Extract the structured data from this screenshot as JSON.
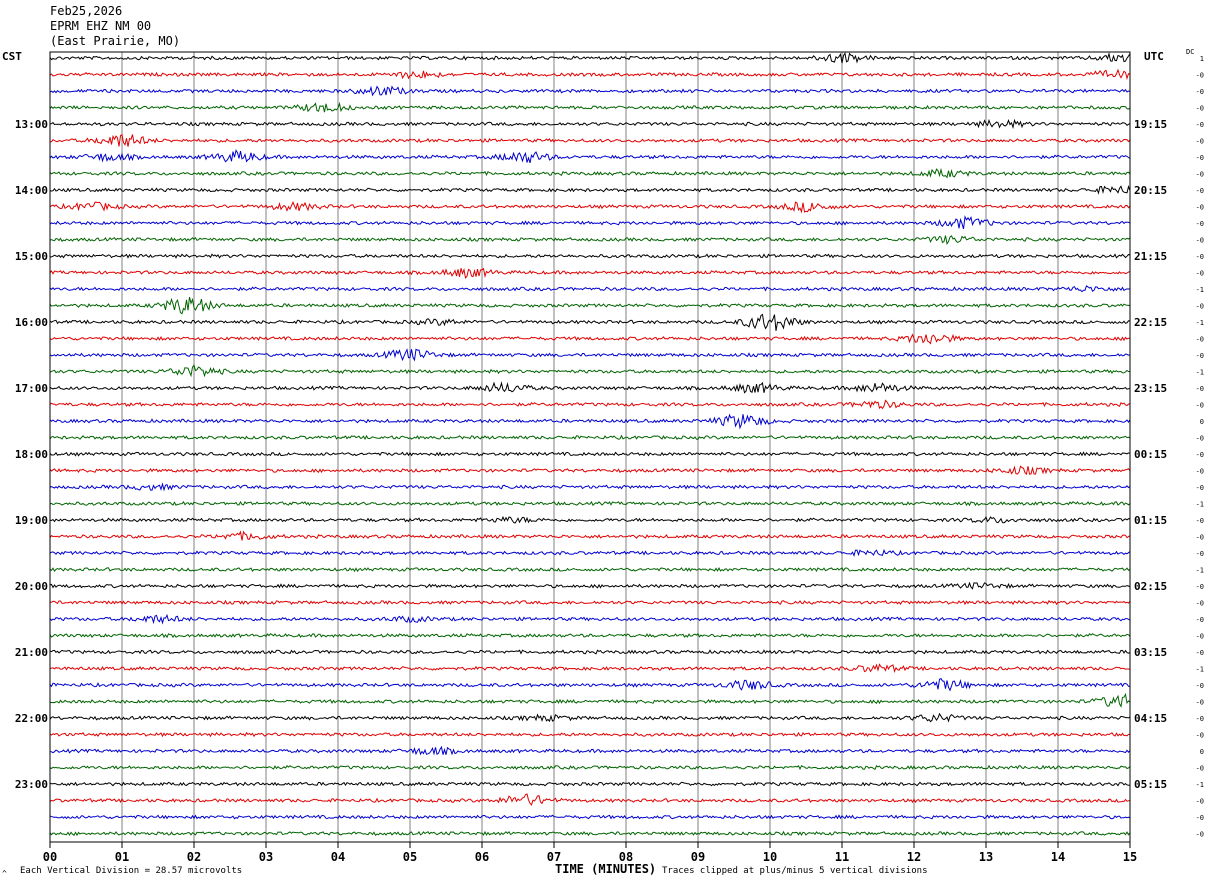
{
  "header": {
    "date": "Feb25,2026",
    "station": "EPRM EHZ NM 00",
    "location": "(East Prairie, MO)"
  },
  "left_timezone": "CST",
  "right_timezone": "UTC",
  "dc_label": "DC",
  "footer": {
    "scale_note": "Each Vertical Division =   28.57 microvolts",
    "clip_note": "Traces clipped at plus/minus 5 vertical divisions",
    "corner_mark": "^"
  },
  "colors": {
    "cycle": [
      "#000000",
      "#e00000",
      "#0000d0",
      "#006400"
    ],
    "grid": "#808080"
  },
  "chart_data": {
    "type": "line",
    "title": "",
    "xlabel": "TIME (MINUTES)",
    "xlim": [
      0,
      15
    ],
    "x_ticks": [
      "00",
      "01",
      "02",
      "03",
      "04",
      "05",
      "06",
      "07",
      "08",
      "09",
      "10",
      "11",
      "12",
      "13",
      "14",
      "15"
    ],
    "trace_count": 48,
    "left_hour_labels": [
      "13:00",
      "14:00",
      "15:00",
      "16:00",
      "17:00",
      "18:00",
      "19:00",
      "20:00",
      "21:00",
      "22:00",
      "23:00"
    ],
    "right_hour_labels": [
      "19:15",
      "20:15",
      "21:15",
      "22:15",
      "23:15",
      "00:15",
      "01:15",
      "02:15",
      "03:15",
      "04:15",
      "05:15"
    ],
    "dc_values": [
      "1",
      "-0",
      "-0",
      "-0",
      "-0",
      "-0",
      "-0",
      "-0",
      "-0",
      "-0",
      "-0",
      "-0",
      "-0",
      "-0",
      "-1",
      "-0",
      "-1",
      "-0",
      "-0",
      "-1",
      "-0",
      "-0",
      "0",
      "-0",
      "-0",
      "-0",
      "-0",
      "-1",
      "-0",
      "-0",
      "-0",
      "-1",
      "-0",
      "-0",
      "-0",
      "-0",
      "-0",
      "-1",
      "-0",
      "-0",
      "-0",
      "-0",
      "0",
      "-0",
      "-1",
      "-0",
      "-0",
      "-0"
    ],
    "events": [
      {
        "trace": 0,
        "minute": 11.0,
        "amp": 4
      },
      {
        "trace": 0,
        "minute": 14.9,
        "amp": 4
      },
      {
        "trace": 1,
        "minute": 5.1,
        "amp": 3
      },
      {
        "trace": 1,
        "minute": 14.8,
        "amp": 3
      },
      {
        "trace": 2,
        "minute": 4.6,
        "amp": 4
      },
      {
        "trace": 3,
        "minute": 3.8,
        "amp": 4
      },
      {
        "trace": 4,
        "minute": 13.2,
        "amp": 3
      },
      {
        "trace": 5,
        "minute": 1.0,
        "amp": 6
      },
      {
        "trace": 6,
        "minute": 0.8,
        "amp": 3
      },
      {
        "trace": 6,
        "minute": 2.6,
        "amp": 5
      },
      {
        "trace": 6,
        "minute": 6.6,
        "amp": 5
      },
      {
        "trace": 7,
        "minute": 12.4,
        "amp": 3
      },
      {
        "trace": 8,
        "minute": 14.8,
        "amp": 3
      },
      {
        "trace": 9,
        "minute": 0.6,
        "amp": 3
      },
      {
        "trace": 9,
        "minute": 3.4,
        "amp": 3
      },
      {
        "trace": 9,
        "minute": 10.5,
        "amp": 4
      },
      {
        "trace": 10,
        "minute": 12.7,
        "amp": 5
      },
      {
        "trace": 11,
        "minute": 12.5,
        "amp": 3
      },
      {
        "trace": 13,
        "minute": 5.8,
        "amp": 4
      },
      {
        "trace": 14,
        "minute": 14.4,
        "amp": 2
      },
      {
        "trace": 15,
        "minute": 1.9,
        "amp": 8
      },
      {
        "trace": 16,
        "minute": 10.0,
        "amp": 9
      },
      {
        "trace": 16,
        "minute": 5.4,
        "amp": 2
      },
      {
        "trace": 17,
        "minute": 12.2,
        "amp": 5
      },
      {
        "trace": 18,
        "minute": 5.0,
        "amp": 5
      },
      {
        "trace": 19,
        "minute": 2.0,
        "amp": 5
      },
      {
        "trace": 20,
        "minute": 6.3,
        "amp": 4
      },
      {
        "trace": 20,
        "minute": 9.8,
        "amp": 4
      },
      {
        "trace": 20,
        "minute": 11.5,
        "amp": 4
      },
      {
        "trace": 21,
        "minute": 11.5,
        "amp": 3
      },
      {
        "trace": 22,
        "minute": 9.6,
        "amp": 6
      },
      {
        "trace": 25,
        "minute": 13.5,
        "amp": 3
      },
      {
        "trace": 26,
        "minute": 1.4,
        "amp": 2
      },
      {
        "trace": 28,
        "minute": 6.4,
        "amp": 2
      },
      {
        "trace": 28,
        "minute": 13.1,
        "amp": 2
      },
      {
        "trace": 29,
        "minute": 2.7,
        "amp": 3
      },
      {
        "trace": 30,
        "minute": 11.4,
        "amp": 2
      },
      {
        "trace": 32,
        "minute": 12.9,
        "amp": 2
      },
      {
        "trace": 34,
        "minute": 1.5,
        "amp": 3
      },
      {
        "trace": 34,
        "minute": 5.0,
        "amp": 2
      },
      {
        "trace": 37,
        "minute": 11.5,
        "amp": 3
      },
      {
        "trace": 38,
        "minute": 9.7,
        "amp": 4
      },
      {
        "trace": 38,
        "minute": 12.4,
        "amp": 5
      },
      {
        "trace": 39,
        "minute": 14.9,
        "amp": 6
      },
      {
        "trace": 40,
        "minute": 6.9,
        "amp": 2
      },
      {
        "trace": 40,
        "minute": 12.3,
        "amp": 3
      },
      {
        "trace": 42,
        "minute": 5.3,
        "amp": 3
      },
      {
        "trace": 45,
        "minute": 6.6,
        "amp": 5
      }
    ]
  }
}
